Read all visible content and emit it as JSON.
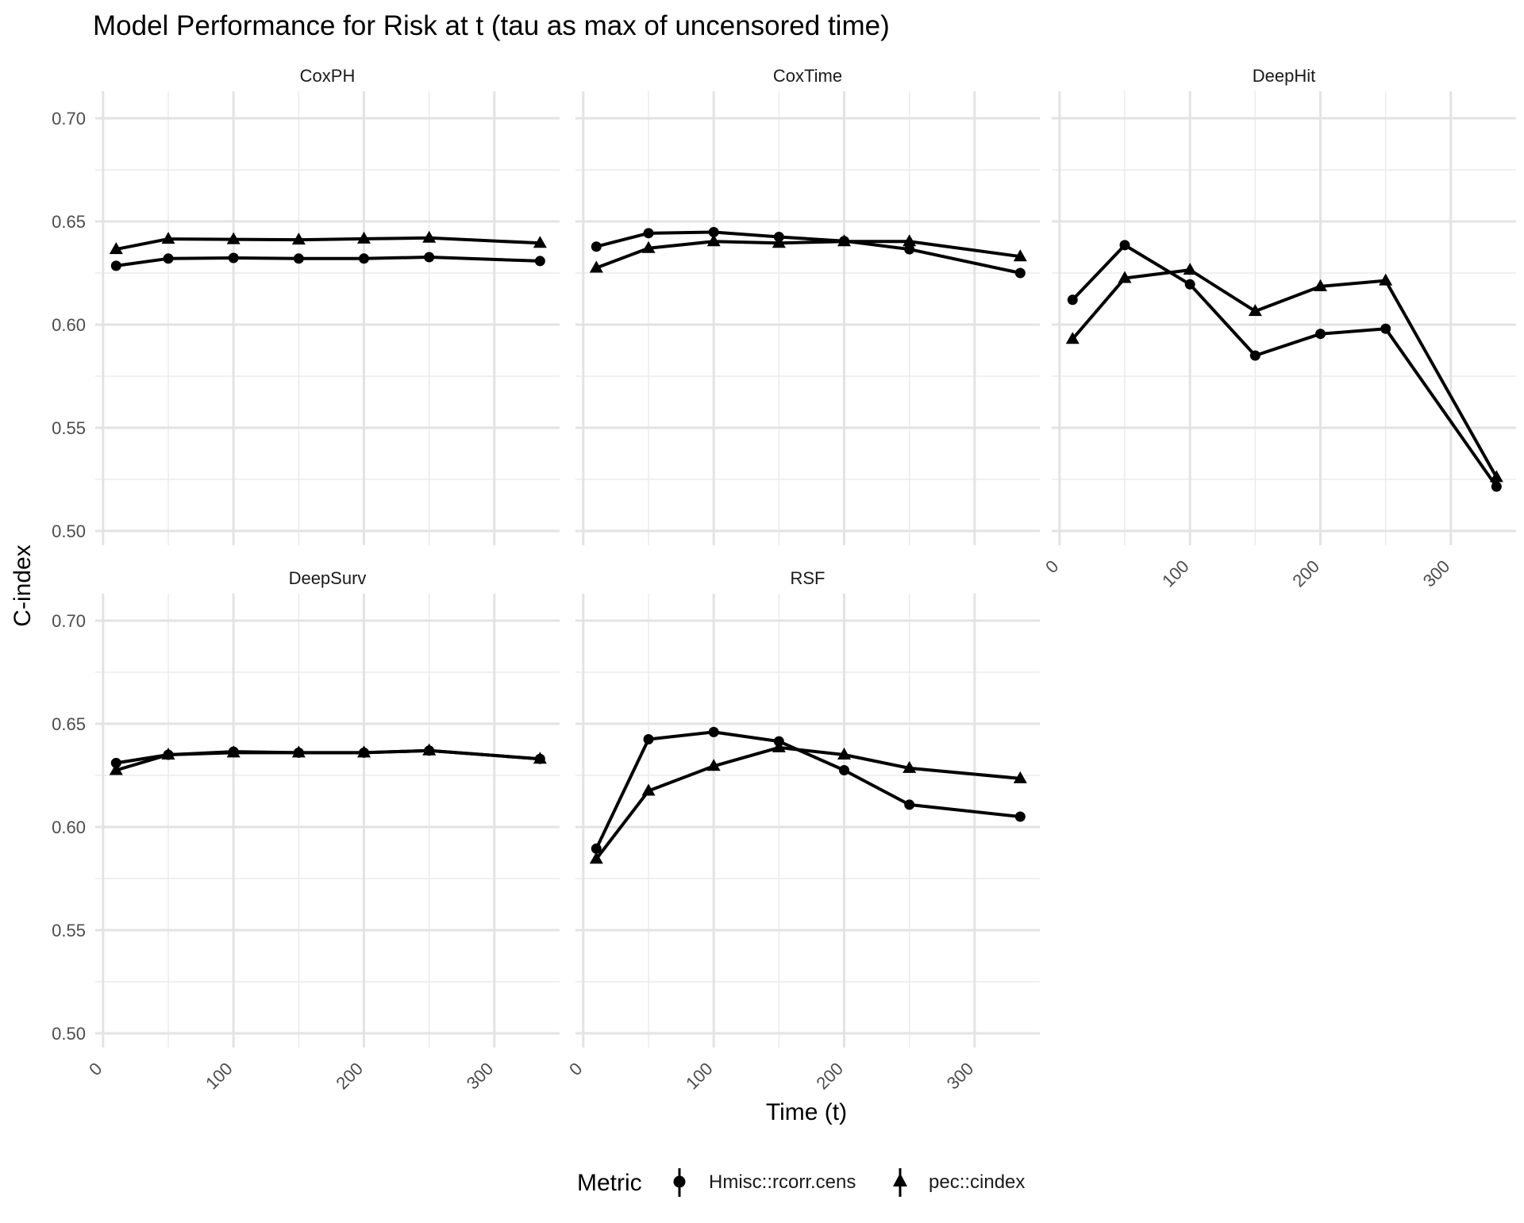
{
  "chart_data": {
    "type": "line",
    "title": "Model Performance for Risk at t (tau as max of uncensored time)",
    "xlabel": "Time (t)",
    "ylabel": "C-index",
    "xlim": [
      0,
      350
    ],
    "ylim": [
      0.5,
      0.72
    ],
    "x_ticks": [
      0,
      100,
      200,
      300
    ],
    "y_ticks": [
      0.5,
      0.55,
      0.6,
      0.65,
      0.7
    ],
    "x_tick_labels": [
      "0",
      "100",
      "200",
      "300"
    ],
    "y_tick_labels": [
      "0.50",
      "0.55",
      "0.60",
      "0.65",
      "0.70"
    ],
    "grid": true,
    "legend_position": "bottom",
    "legend": {
      "title": "Metric",
      "entries": [
        {
          "label": "Hmisc::rcorr.cens",
          "marker": "circle"
        },
        {
          "label": "pec::cindex",
          "marker": "triangle"
        }
      ]
    },
    "x": [
      10,
      50,
      100,
      150,
      200,
      250,
      335
    ],
    "panels": [
      {
        "name": "CoxPH",
        "series": [
          {
            "name": "Hmisc::rcorr.cens",
            "values": [
              0.6285,
              0.632,
              0.6323,
              0.632,
              0.632,
              0.6327,
              0.6308
            ]
          },
          {
            "name": "pec::cindex",
            "values": [
              0.6365,
              0.6415,
              0.6413,
              0.6411,
              0.6416,
              0.642,
              0.6395
            ]
          }
        ]
      },
      {
        "name": "CoxTime",
        "series": [
          {
            "name": "Hmisc::rcorr.cens",
            "values": [
              0.6378,
              0.6443,
              0.6448,
              0.6425,
              0.6405,
              0.6365,
              0.625
            ]
          },
          {
            "name": "pec::cindex",
            "values": [
              0.6275,
              0.637,
              0.6403,
              0.6395,
              0.6403,
              0.6403,
              0.633
            ]
          }
        ]
      },
      {
        "name": "DeepHit",
        "series": [
          {
            "name": "Hmisc::rcorr.cens",
            "values": [
              0.612,
              0.6385,
              0.6195,
              0.585,
              0.5955,
              0.598,
              0.5215
            ]
          },
          {
            "name": "pec::cindex",
            "values": [
              0.593,
              0.6225,
              0.6265,
              0.6065,
              0.6185,
              0.6213,
              0.526
            ]
          }
        ]
      },
      {
        "name": "DeepSurv",
        "series": [
          {
            "name": "Hmisc::rcorr.cens",
            "values": [
              0.631,
              0.635,
              0.6365,
              0.636,
              0.636,
              0.637,
              0.633
            ]
          },
          {
            "name": "pec::cindex",
            "values": [
              0.6275,
              0.635,
              0.636,
              0.636,
              0.636,
              0.637,
              0.633
            ]
          }
        ]
      },
      {
        "name": "RSF",
        "series": [
          {
            "name": "Hmisc::rcorr.cens",
            "values": [
              0.5895,
              0.6425,
              0.646,
              0.6415,
              0.6275,
              0.6108,
              0.605
            ]
          },
          {
            "name": "pec::cindex",
            "values": [
              0.5845,
              0.6175,
              0.6295,
              0.6385,
              0.635,
              0.6285,
              0.6235
            ]
          }
        ]
      }
    ]
  }
}
